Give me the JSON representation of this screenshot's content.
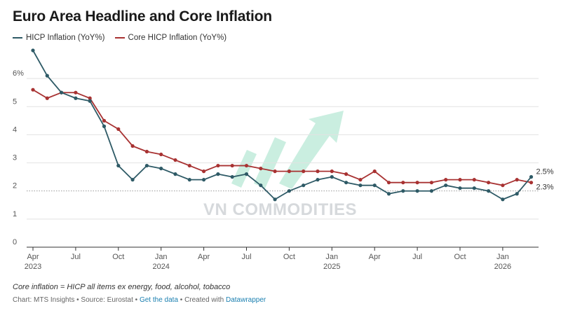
{
  "title": "Euro Area Headline and Core Inflation",
  "legend": {
    "hicp": "HICP Inflation (YoY%)",
    "core": "Core HICP Inflation (YoY%)"
  },
  "colors": {
    "hicp": "#2e5a66",
    "core": "#a83232",
    "watermark": "#9ee0c6"
  },
  "footnote": "Core inflation = HICP all items ex energy, food, alcohol, tobacco",
  "credit": {
    "prefix": "Chart: MTS Insights • Source: Eurostat • ",
    "data_link": "Get the data",
    "middle": " • Created with ",
    "tool_link": "Datawrapper"
  },
  "watermark": {
    "text": "VN COMMODITIES",
    "logo": "rising-arrow-logo"
  },
  "chart_data": {
    "type": "line",
    "title": "Euro Area Headline and Core Inflation",
    "xlabel": "",
    "ylabel": "",
    "ylim": [
      0,
      7
    ],
    "yticks": [
      {
        "value": 0,
        "label": "0"
      },
      {
        "value": 1,
        "label": "1"
      },
      {
        "value": 2,
        "label": "2"
      },
      {
        "value": 3,
        "label": "3"
      },
      {
        "value": 4,
        "label": "4"
      },
      {
        "value": 5,
        "label": "5"
      },
      {
        "value": 6,
        "label": "6%"
      }
    ],
    "reference_line": 2,
    "grid": true,
    "legend_position": "top-left",
    "x": [
      "2023-04",
      "2023-05",
      "2023-06",
      "2023-07",
      "2023-08",
      "2023-09",
      "2023-10",
      "2023-11",
      "2023-12",
      "2024-01",
      "2024-02",
      "2024-03",
      "2024-04",
      "2024-05",
      "2024-06",
      "2024-07",
      "2024-08",
      "2024-09",
      "2024-10",
      "2024-11",
      "2024-12",
      "2025-01",
      "2025-02",
      "2025-03",
      "2025-04",
      "2025-05",
      "2025-06",
      "2025-07",
      "2025-08",
      "2025-09",
      "2025-10",
      "2025-11",
      "2025-12",
      "2026-01",
      "2026-02",
      "2026-03"
    ],
    "xticks": [
      {
        "index": 0,
        "label": "Apr",
        "year": "2023"
      },
      {
        "index": 3,
        "label": "Jul",
        "year": ""
      },
      {
        "index": 6,
        "label": "Oct",
        "year": ""
      },
      {
        "index": 9,
        "label": "Jan",
        "year": "2024"
      },
      {
        "index": 12,
        "label": "Apr",
        "year": ""
      },
      {
        "index": 15,
        "label": "Jul",
        "year": ""
      },
      {
        "index": 18,
        "label": "Oct",
        "year": ""
      },
      {
        "index": 21,
        "label": "Jan",
        "year": "2025"
      },
      {
        "index": 24,
        "label": "Apr",
        "year": ""
      },
      {
        "index": 27,
        "label": "Jul",
        "year": ""
      },
      {
        "index": 30,
        "label": "Oct",
        "year": ""
      },
      {
        "index": 33,
        "label": "Jan",
        "year": "2026"
      }
    ],
    "series": [
      {
        "name": "HICP Inflation (YoY%)",
        "key": "hicp",
        "values": [
          7.0,
          6.1,
          5.5,
          5.3,
          5.2,
          4.3,
          2.9,
          2.4,
          2.9,
          2.8,
          2.6,
          2.4,
          2.4,
          2.6,
          2.5,
          2.6,
          2.2,
          1.7,
          2.0,
          2.2,
          2.4,
          2.5,
          2.3,
          2.2,
          2.2,
          1.9,
          2.0,
          2.0,
          2.0,
          2.2,
          2.1,
          2.1,
          2.0,
          1.7,
          1.9,
          2.5
        ],
        "end_label": "2.5%"
      },
      {
        "name": "Core HICP Inflation (YoY%)",
        "key": "core",
        "values": [
          5.6,
          5.3,
          5.5,
          5.5,
          5.3,
          4.5,
          4.2,
          3.6,
          3.4,
          3.3,
          3.1,
          2.9,
          2.7,
          2.9,
          2.9,
          2.9,
          2.8,
          2.7,
          2.7,
          2.7,
          2.7,
          2.7,
          2.6,
          2.4,
          2.7,
          2.3,
          2.3,
          2.3,
          2.3,
          2.4,
          2.4,
          2.4,
          2.3,
          2.2,
          2.4,
          2.3
        ],
        "end_label": "2.3%"
      }
    ]
  }
}
